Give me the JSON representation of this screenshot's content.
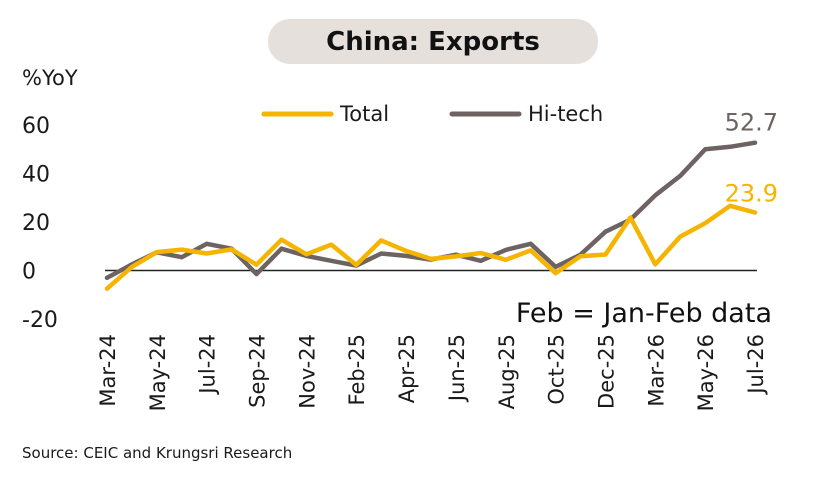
{
  "title": "China: Exports",
  "source": "Source: CEIC and Krungsri Research",
  "colors": {
    "total": "#f4b400",
    "hitech": "#6e6363",
    "title_bg": "#e6e0dd",
    "axis": "#222222"
  },
  "chart_data": {
    "type": "line",
    "title": "China: Exports",
    "ylabel": "%YoY",
    "xlabel": "",
    "ylim": [
      -20,
      60
    ],
    "yticks": [
      -20,
      0,
      20,
      40,
      60
    ],
    "grid": false,
    "legend_position": "top-center",
    "annotation": "Feb = Jan-Feb data",
    "x": [
      "Mar-24",
      "Apr-24",
      "May-24",
      "Jun-24",
      "Jul-24",
      "Aug-24",
      "Sep-24",
      "Oct-24",
      "Nov-24",
      "Dec-24",
      "Feb-25",
      "Mar-25",
      "Apr-25",
      "May-25",
      "Jun-25",
      "Jul-25",
      "Aug-25",
      "Sep-25",
      "Oct-25",
      "Nov-25",
      "Dec-25",
      "Feb-26",
      "Mar-26",
      "Apr-26",
      "May-26",
      "Jun-26",
      "Jul-26"
    ],
    "tick_labels": [
      "Mar-24",
      "May-24",
      "Jul-24",
      "Sep-24",
      "Nov-24",
      "Feb-25",
      "Apr-25",
      "Jun-25",
      "Aug-25",
      "Oct-25",
      "Dec-25",
      "Mar-26",
      "May-26",
      "Jul-26"
    ],
    "series": [
      {
        "name": "Total",
        "color": "#f4b400",
        "values": [
          -7.5,
          1.5,
          7.6,
          8.6,
          7.0,
          8.7,
          2.4,
          12.7,
          6.7,
          10.7,
          2.3,
          12.4,
          8.1,
          4.8,
          5.8,
          7.2,
          4.4,
          8.3,
          -1.1,
          5.9,
          6.6,
          21.8,
          2.5,
          14.0,
          19.5,
          26.7,
          23.9
        ],
        "end_label": "23.9"
      },
      {
        "name": "Hi-tech",
        "color": "#6e6363",
        "values": [
          -3.0,
          2.5,
          7.5,
          5.5,
          11.0,
          9.0,
          -1.5,
          9.0,
          6.0,
          4.0,
          2.0,
          7.0,
          6.0,
          4.5,
          6.5,
          4.0,
          8.5,
          11.0,
          1.5,
          6.5,
          16.0,
          21.0,
          31.0,
          39.0,
          50.0,
          51.0,
          52.7
        ],
        "end_label": "52.7"
      }
    ]
  }
}
